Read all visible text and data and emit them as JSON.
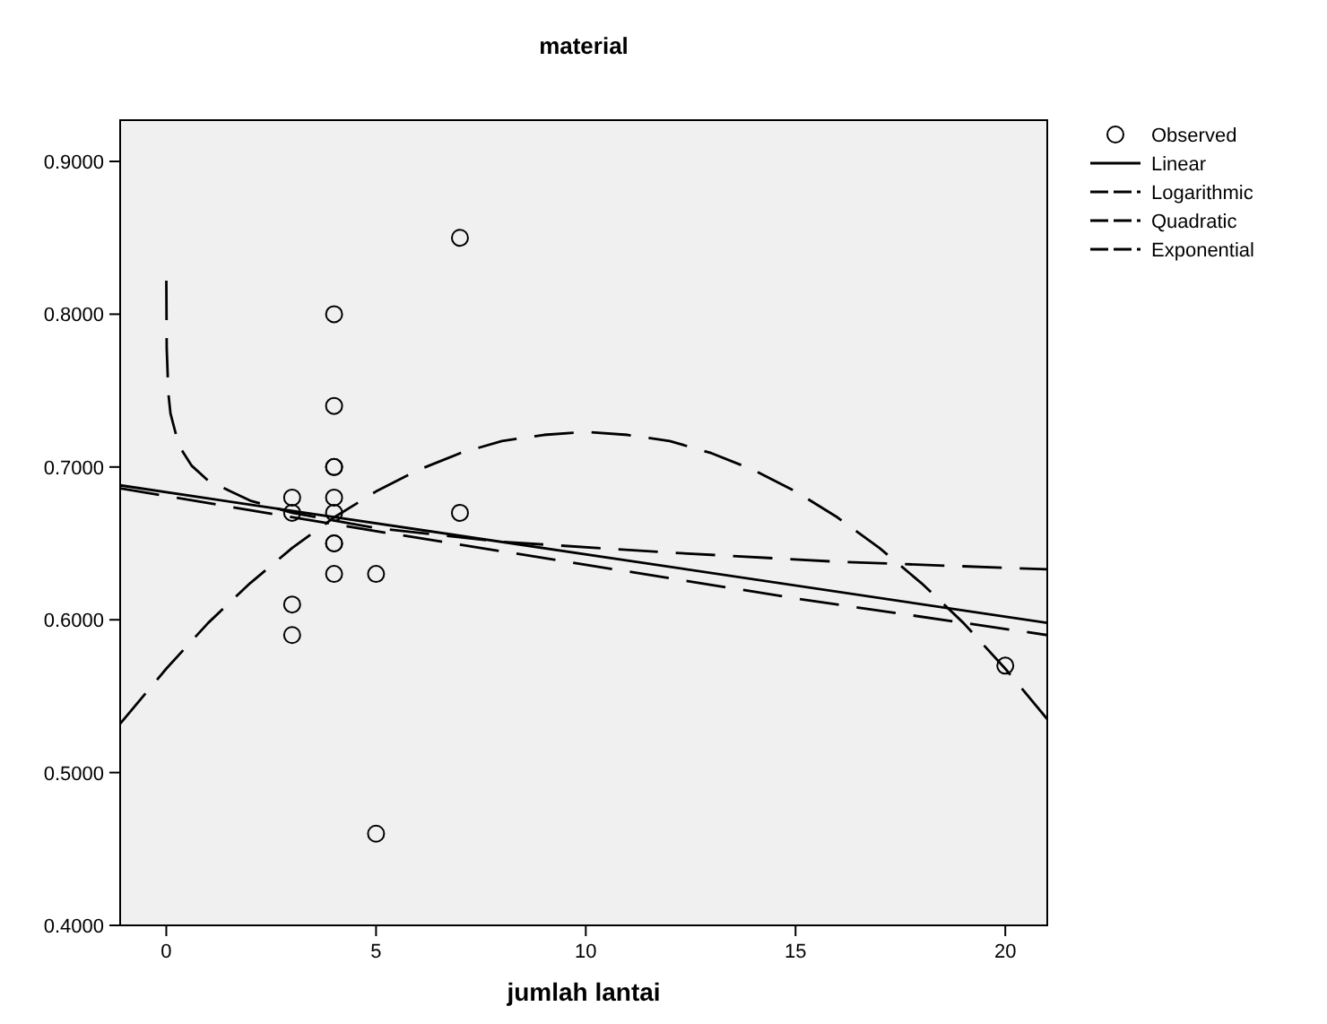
{
  "chart_data": {
    "type": "scatter",
    "title": "material",
    "xlabel": "jumlah lantai",
    "xlim": [
      -1.1,
      21
    ],
    "ylim": [
      0.4,
      0.927
    ],
    "xticks": [
      0,
      5,
      10,
      15,
      20
    ],
    "yticks": [
      {
        "value": 0.4,
        "label": "0.4000"
      },
      {
        "value": 0.5,
        "label": "0.5000"
      },
      {
        "value": 0.6,
        "label": "0.6000"
      },
      {
        "value": 0.7,
        "label": "0.7000"
      },
      {
        "value": 0.8,
        "label": "0.8000"
      },
      {
        "value": 0.9,
        "label": "0.9000"
      }
    ],
    "grid": false,
    "legend": "right",
    "series": [
      {
        "name": "Observed",
        "marker": "circle",
        "color": "#000000",
        "x": [
          7,
          4,
          4,
          4,
          4,
          4,
          3,
          3,
          4,
          4,
          4,
          4,
          5,
          3,
          3,
          7,
          5,
          20
        ],
        "values": [
          0.85,
          0.8,
          0.74,
          0.7,
          0.7,
          0.68,
          0.68,
          0.67,
          0.67,
          0.65,
          0.65,
          0.63,
          0.63,
          0.61,
          0.59,
          0.67,
          0.46,
          0.57
        ]
      },
      {
        "name": "Linear",
        "type": "line",
        "line_style": "solid",
        "color": "#000000",
        "x": [
          -1.1,
          21
        ],
        "values": [
          0.688,
          0.598
        ]
      },
      {
        "name": "Logarithmic",
        "type": "line",
        "line_style": "dashed",
        "color": "#000000",
        "x": [
          0.001,
          0.01,
          0.05,
          0.1,
          0.3,
          0.6,
          1,
          2,
          3,
          5,
          8,
          12,
          16,
          21
        ],
        "values": [
          0.822,
          0.778,
          0.748,
          0.735,
          0.714,
          0.701,
          0.691,
          0.678,
          0.67,
          0.66,
          0.651,
          0.644,
          0.638,
          0.633
        ]
      },
      {
        "name": "Quadratic",
        "type": "line",
        "line_style": "dashed",
        "color": "#000000",
        "x": [
          -1.1,
          0,
          1,
          2,
          3,
          4,
          5,
          6,
          7,
          8,
          9,
          10,
          11,
          12,
          13,
          14,
          15,
          16,
          17,
          18,
          19,
          20,
          21
        ],
        "values": [
          0.532,
          0.568,
          0.598,
          0.624,
          0.647,
          0.667,
          0.684,
          0.698,
          0.709,
          0.717,
          0.721,
          0.723,
          0.721,
          0.717,
          0.709,
          0.698,
          0.684,
          0.667,
          0.647,
          0.624,
          0.598,
          0.568,
          0.535
        ]
      },
      {
        "name": "Exponential",
        "type": "line",
        "line_style": "dashed",
        "color": "#000000",
        "x": [
          -1.1,
          5,
          10,
          15,
          21
        ],
        "values": [
          0.686,
          0.658,
          0.636,
          0.614,
          0.59
        ]
      }
    ]
  }
}
